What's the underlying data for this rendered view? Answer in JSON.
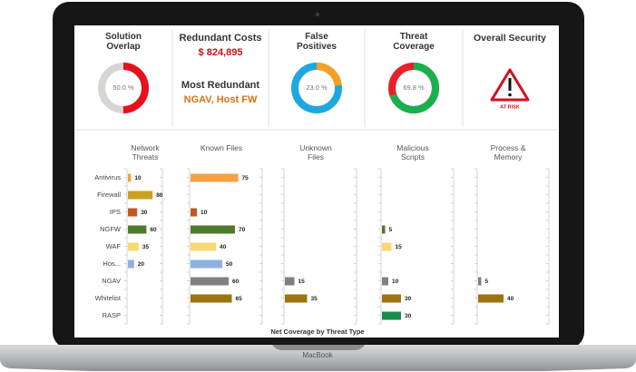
{
  "device_label": "MacBook",
  "donuts": [
    {
      "title": "Solution Overlap",
      "value": 50,
      "value_label": "50.0 %",
      "color": "#e8101a",
      "track": "#d9d5d2"
    },
    {
      "title": "False Positives",
      "value": 23,
      "value_label": "23.0 %",
      "color": "#f5a020",
      "track": "#1ea8e0"
    },
    {
      "title": "Threat Coverage",
      "value": 69.8,
      "value_label": "69.8 %",
      "color": "#19b04e",
      "track": "#e8202a"
    }
  ],
  "costs": {
    "title": "Redundant Costs",
    "amount": "$ 824,895",
    "subtitle": "Most Redundant",
    "items": "NGAV, Host FW"
  },
  "security": {
    "title": "Overall Security",
    "status": "AT RISK"
  },
  "chart_data": {
    "type": "bar",
    "orientation": "horizontal",
    "title": "Net Coverage by Threat Type",
    "categories": [
      "Antivirus",
      "Firewall",
      "IPS",
      "NGFW",
      "WAF",
      "Hos...",
      "NGAV",
      "Whitelist",
      "RASP"
    ],
    "colors": [
      "#f7a040",
      "#c9a020",
      "#c05a1c",
      "#4e7a2c",
      "#f8d870",
      "#8fb0dd",
      "#808080",
      "#9c7410",
      "#1a8a4a"
    ],
    "xlim": [
      0,
      100
    ],
    "panels": [
      {
        "name": "Network Threats",
        "values": [
          10,
          80,
          30,
          60,
          35,
          20,
          null,
          null,
          null
        ]
      },
      {
        "name": "Known Files",
        "values": [
          75,
          null,
          10,
          70,
          40,
          50,
          60,
          65,
          null
        ]
      },
      {
        "name": "Unknown Files",
        "values": [
          null,
          null,
          null,
          null,
          null,
          null,
          15,
          35,
          null
        ]
      },
      {
        "name": "Malicious Scripts",
        "values": [
          null,
          null,
          null,
          5,
          15,
          null,
          10,
          30,
          30
        ]
      },
      {
        "name": "Process & Memory",
        "values": [
          null,
          null,
          null,
          null,
          null,
          null,
          5,
          40,
          null
        ]
      }
    ]
  }
}
